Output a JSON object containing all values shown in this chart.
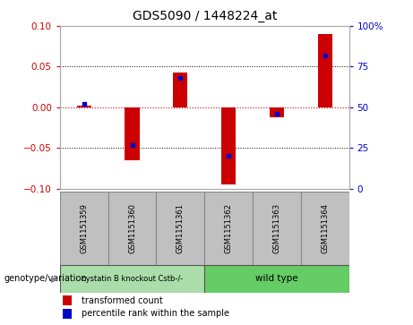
{
  "title": "GDS5090 / 1448224_at",
  "samples": [
    "GSM1151359",
    "GSM1151360",
    "GSM1151361",
    "GSM1151362",
    "GSM1151363",
    "GSM1151364"
  ],
  "transformed_count": [
    0.002,
    -0.065,
    0.043,
    -0.095,
    -0.012,
    0.09
  ],
  "percentile_rank": [
    52,
    27,
    68,
    20,
    46,
    82
  ],
  "ylim_left": [
    -0.1,
    0.1
  ],
  "ylim_right": [
    0,
    100
  ],
  "yticks_left": [
    -0.1,
    -0.05,
    0,
    0.05,
    0.1
  ],
  "yticks_right": [
    0,
    25,
    50,
    75,
    100
  ],
  "group1_label": "cystatin B knockout Cstb-/-",
  "group2_label": "wild type",
  "group1_color": "#aaddaa",
  "group2_color": "#66cc66",
  "bar_color": "#cc0000",
  "dot_color": "#0000cc",
  "zero_line_color": "#cc0000",
  "grid_color": "#000000",
  "bg_color": "#ffffff",
  "sample_box_color": "#c0c0c0",
  "genotype_label": "genotype/variation",
  "legend_red": "transformed count",
  "legend_blue": "percentile rank within the sample",
  "bar_width": 0.3
}
